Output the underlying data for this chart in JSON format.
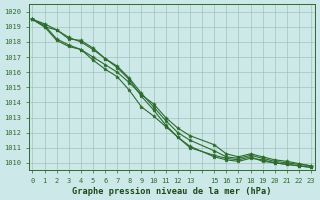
{
  "title": "Graphe pression niveau de la mer (hPa)",
  "bg_color": "#cce8e8",
  "line_color": "#2d6b2d",
  "marker_color": "#2d6b2d",
  "xlim": [
    -0.3,
    23.3
  ],
  "ylim": [
    1009.5,
    1020.5
  ],
  "yticks": [
    1010,
    1011,
    1012,
    1013,
    1014,
    1015,
    1016,
    1017,
    1018,
    1019,
    1020
  ],
  "xtick_positions": [
    0,
    1,
    2,
    3,
    4,
    5,
    6,
    7,
    8,
    9,
    10,
    11,
    12,
    13,
    14,
    15,
    16,
    17,
    18,
    19,
    20,
    21,
    22,
    23
  ],
  "xtick_labels": [
    "0",
    "1",
    "2",
    "3",
    "4",
    "5",
    "6",
    "7",
    "8",
    "9",
    "10",
    "11",
    "12",
    "13",
    "",
    "15",
    "16",
    "17",
    "18",
    "19",
    "20",
    "21",
    "22",
    "23"
  ],
  "series": [
    [
      1019.5,
      1019.0,
      1018.1,
      1017.7,
      1017.5,
      1016.8,
      1016.2,
      1015.7,
      1014.8,
      1013.7,
      1013.1,
      1012.4,
      1011.7,
      1011.1,
      null,
      1010.4,
      1010.2,
      1010.1,
      1010.3,
      1010.2,
      1010.0,
      1009.9,
      1009.8,
      1009.7
    ],
    [
      1019.5,
      1019.0,
      1018.8,
      1018.2,
      1018.1,
      1017.6,
      1016.9,
      1016.3,
      1015.5,
      1014.4,
      1013.5,
      1012.5,
      1011.7,
      1011.0,
      null,
      1010.5,
      1010.3,
      1010.2,
      1010.4,
      1010.1,
      1010.0,
      1009.9,
      1009.8,
      1009.7
    ],
    [
      1019.5,
      1019.2,
      1018.8,
      1018.3,
      1018.0,
      1017.5,
      1016.9,
      1016.4,
      1015.6,
      1014.6,
      1013.7,
      1012.8,
      1012.0,
      1011.5,
      null,
      1010.8,
      1010.4,
      1010.3,
      1010.5,
      1010.3,
      1010.1,
      1010.0,
      1009.9,
      1009.8
    ],
    [
      1019.5,
      1019.1,
      1018.2,
      1017.8,
      1017.5,
      1017.0,
      1016.5,
      1016.0,
      1015.3,
      1014.5,
      1013.9,
      1013.0,
      1012.3,
      1011.8,
      null,
      1011.2,
      1010.6,
      1010.4,
      1010.6,
      1010.4,
      1010.2,
      1010.1,
      1009.95,
      1009.8
    ]
  ]
}
